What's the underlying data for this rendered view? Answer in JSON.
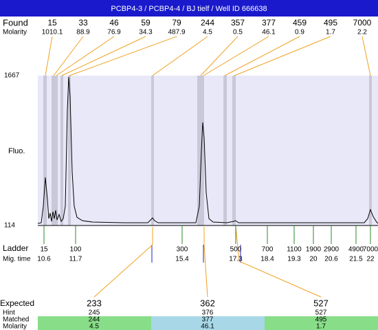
{
  "header": {
    "title": "PCBP4-3 / PCBP4-4 / BJ tielf / Well ID 666638"
  },
  "found": {
    "label": "Found",
    "molarity_label": "Molarity",
    "peaks": [
      {
        "size": "15",
        "molarity": "1010.1"
      },
      {
        "size": "33",
        "molarity": "88.9"
      },
      {
        "size": "46",
        "molarity": "76.9"
      },
      {
        "size": "59",
        "molarity": "34.3"
      },
      {
        "size": "79",
        "molarity": "487.9"
      },
      {
        "size": "244",
        "molarity": "4.5"
      },
      {
        "size": "357",
        "molarity": "0.5"
      },
      {
        "size": "377",
        "molarity": "46.1"
      },
      {
        "size": "459",
        "molarity": "0.9"
      },
      {
        "size": "495",
        "molarity": "1.7"
      },
      {
        "size": "7000",
        "molarity": "2.2"
      }
    ]
  },
  "plot": {
    "y_label": "Fluo.",
    "y_top": "1667",
    "y_bottom": "114"
  },
  "ladder": {
    "label": "Ladder",
    "time_label": "Mig. time",
    "points": [
      {
        "size": "15",
        "time": "10.6"
      },
      {
        "size": "100",
        "time": "11.7"
      },
      {
        "size": "300",
        "time": "15.4"
      },
      {
        "size": "500",
        "time": "17.3"
      },
      {
        "size": "700",
        "time": "18.4"
      },
      {
        "size": "1100",
        "time": "19.3"
      },
      {
        "size": "1900",
        "time": "20"
      },
      {
        "size": "2900",
        "time": "20.6"
      },
      {
        "size": "4900",
        "time": "21.5"
      },
      {
        "size": "7000",
        "time": "22"
      }
    ]
  },
  "expected": {
    "label": "Expected",
    "hint_label": "Hint",
    "matched_label": "Matched",
    "molarity_label": "Molarity",
    "items": [
      {
        "expected": "233",
        "hint": "245",
        "matched": "244",
        "molarity": "4.5"
      },
      {
        "expected": "362",
        "hint": "376",
        "matched": "377",
        "molarity": "46.1"
      },
      {
        "expected": "527",
        "hint": "527",
        "matched": "495",
        "molarity": "1.7"
      }
    ]
  }
}
